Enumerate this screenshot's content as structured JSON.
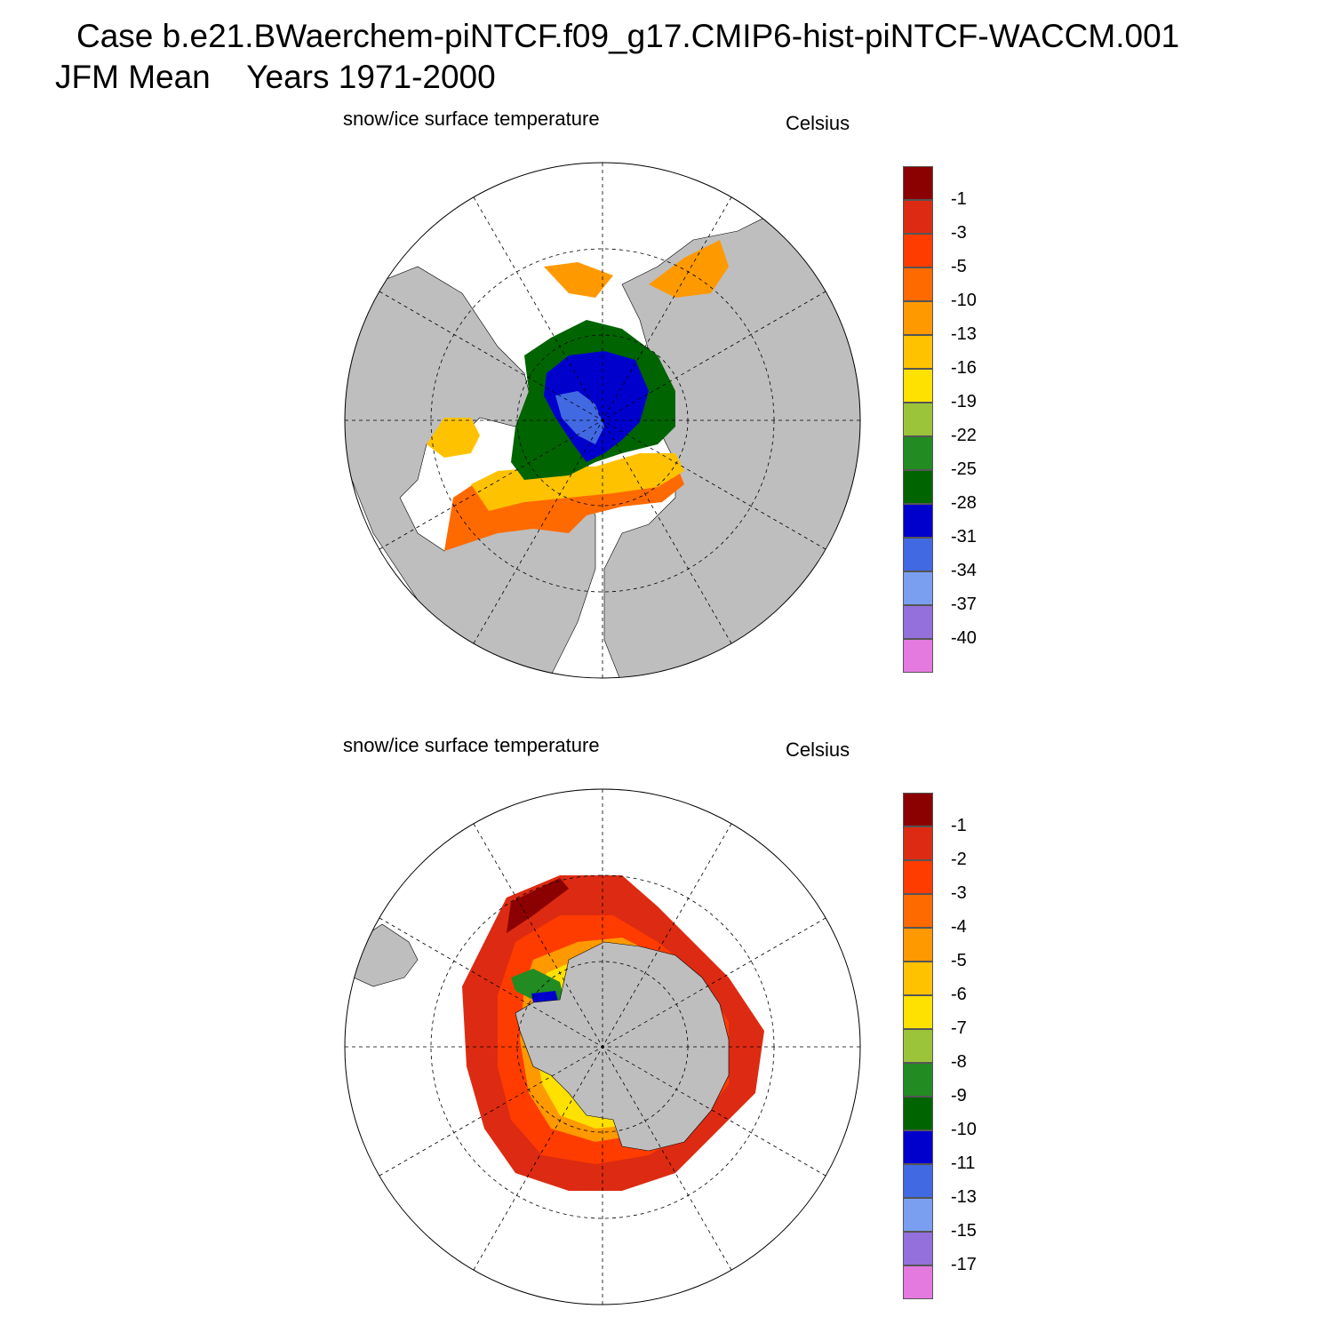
{
  "header": {
    "title": "Case b.e21.BWaerchem-piNTCF.f09_g17.CMIP6-hist-piNTCF-WACCM.001",
    "subtitle_season": "JFM Mean",
    "subtitle_years": "Years 1971-2000"
  },
  "colors": {
    "land": "#bebebe",
    "no_data": "#ffffff",
    "graticule": "#000000"
  },
  "panels": [
    {
      "id": "north",
      "label": "snow/ice surface temperature",
      "units": "Celsius",
      "hemisphere": "Northern",
      "legend": {
        "colors": [
          "#8b0000",
          "#dc2b12",
          "#ff3c00",
          "#ff6a00",
          "#ff9900",
          "#ffc200",
          "#ffe100",
          "#9bc43a",
          "#228b22",
          "#006400",
          "#0000cd",
          "#4169e1",
          "#7b9ff0",
          "#9370db",
          "#e47ae0"
        ],
        "ticks": [
          "-1",
          "-3",
          "-5",
          "-10",
          "-13",
          "-16",
          "-19",
          "-22",
          "-25",
          "-28",
          "-31",
          "-34",
          "-37",
          "-40"
        ]
      }
    },
    {
      "id": "south",
      "label": "snow/ice surface temperature",
      "units": "Celsius",
      "hemisphere": "Southern",
      "legend": {
        "colors": [
          "#8b0000",
          "#dc2b12",
          "#ff3c00",
          "#ff6a00",
          "#ff9900",
          "#ffc200",
          "#ffe100",
          "#9bc43a",
          "#228b22",
          "#006400",
          "#0000cd",
          "#4169e1",
          "#7b9ff0",
          "#9370db",
          "#e47ae0"
        ],
        "ticks": [
          "-1",
          "-2",
          "-3",
          "-4",
          "-5",
          "-6",
          "-7",
          "-8",
          "-9",
          "-10",
          "-11",
          "-13",
          "-15",
          "-17"
        ]
      }
    }
  ]
}
